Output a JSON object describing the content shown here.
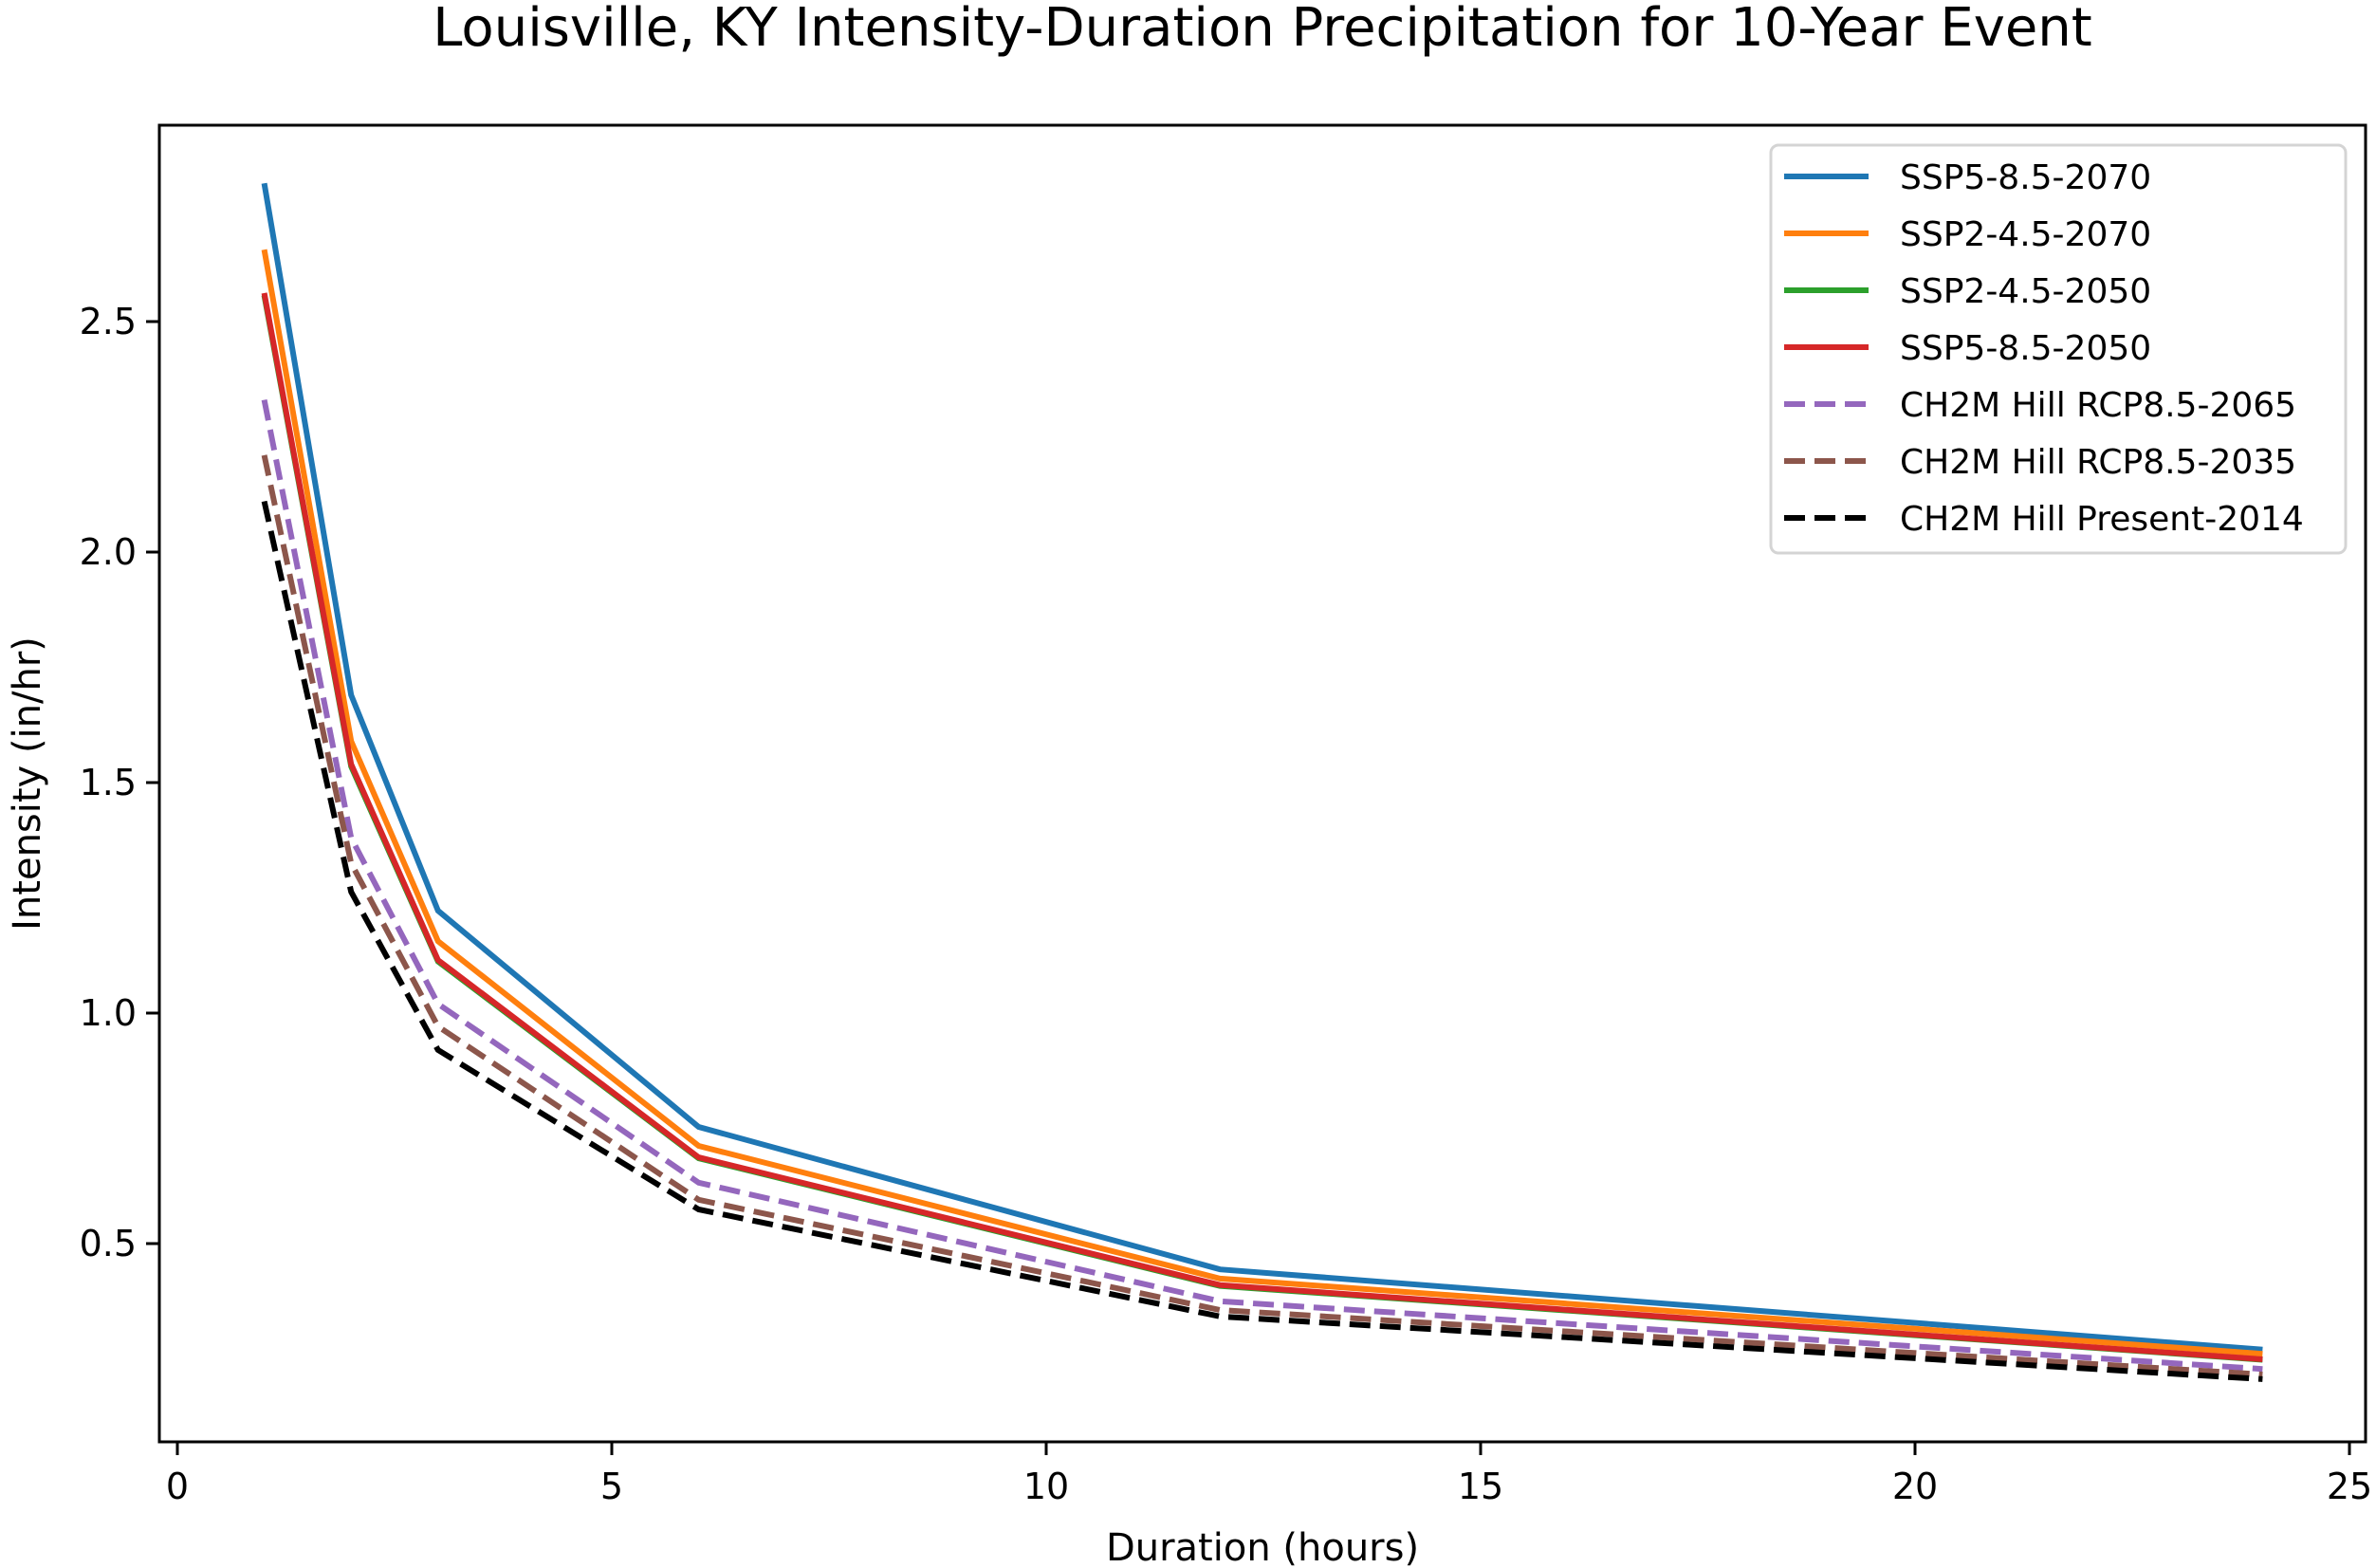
{
  "chart_data": {
    "type": "line",
    "title": "Louisville, KY Intensity-Duration Precipitation for 10-Year Event",
    "xlabel": "Duration (hours)",
    "ylabel": "Intensity (in/hr)",
    "xlim": [
      -0.2,
      25
    ],
    "ylim": [
      0.1,
      2.92
    ],
    "xticks": [
      0,
      5,
      10,
      15,
      20,
      25
    ],
    "xtick_labels": [
      "0",
      "5",
      "10",
      "15",
      "20",
      "25"
    ],
    "yticks": [
      0.5,
      1.0,
      1.5,
      2.0,
      2.5
    ],
    "ytick_labels": [
      "0.5",
      "1.0",
      "1.5",
      "2.0",
      "2.5"
    ],
    "grid": false,
    "legend_position": "top-right",
    "x": [
      1,
      2,
      3,
      6,
      12,
      24
    ],
    "series": [
      {
        "name": "SSP5-8.5-2070",
        "color": "#1f77b4",
        "style": "solid",
        "values": [
          2.8,
          1.69,
          1.222,
          0.753,
          0.444,
          0.27
        ]
      },
      {
        "name": "SSP2-4.5-2070",
        "color": "#ff7f0e",
        "style": "solid",
        "values": [
          2.656,
          1.59,
          1.156,
          0.712,
          0.424,
          0.261
        ]
      },
      {
        "name": "SSP2-4.5-2050",
        "color": "#2ca02c",
        "style": "solid",
        "values": [
          2.557,
          1.535,
          1.112,
          0.685,
          0.408,
          0.248
        ]
      },
      {
        "name": "SSP5-8.5-2050",
        "color": "#d62728",
        "style": "solid",
        "values": [
          2.562,
          1.54,
          1.115,
          0.687,
          0.41,
          0.249
        ]
      },
      {
        "name": "CH2M Hill RCP8.5-2065",
        "color": "#9467bd",
        "style": "dashed",
        "values": [
          2.33,
          1.38,
          1.02,
          0.632,
          0.375,
          0.228
        ]
      },
      {
        "name": "CH2M Hill RCP8.5-2035",
        "color": "#8c564b",
        "style": "dashed",
        "values": [
          2.21,
          1.325,
          0.971,
          0.595,
          0.356,
          0.216
        ]
      },
      {
        "name": "CH2M Hill Present-2014",
        "color": "#000000",
        "style": "dashed",
        "values": [
          2.11,
          1.263,
          0.92,
          0.574,
          0.342,
          0.206
        ]
      }
    ]
  }
}
